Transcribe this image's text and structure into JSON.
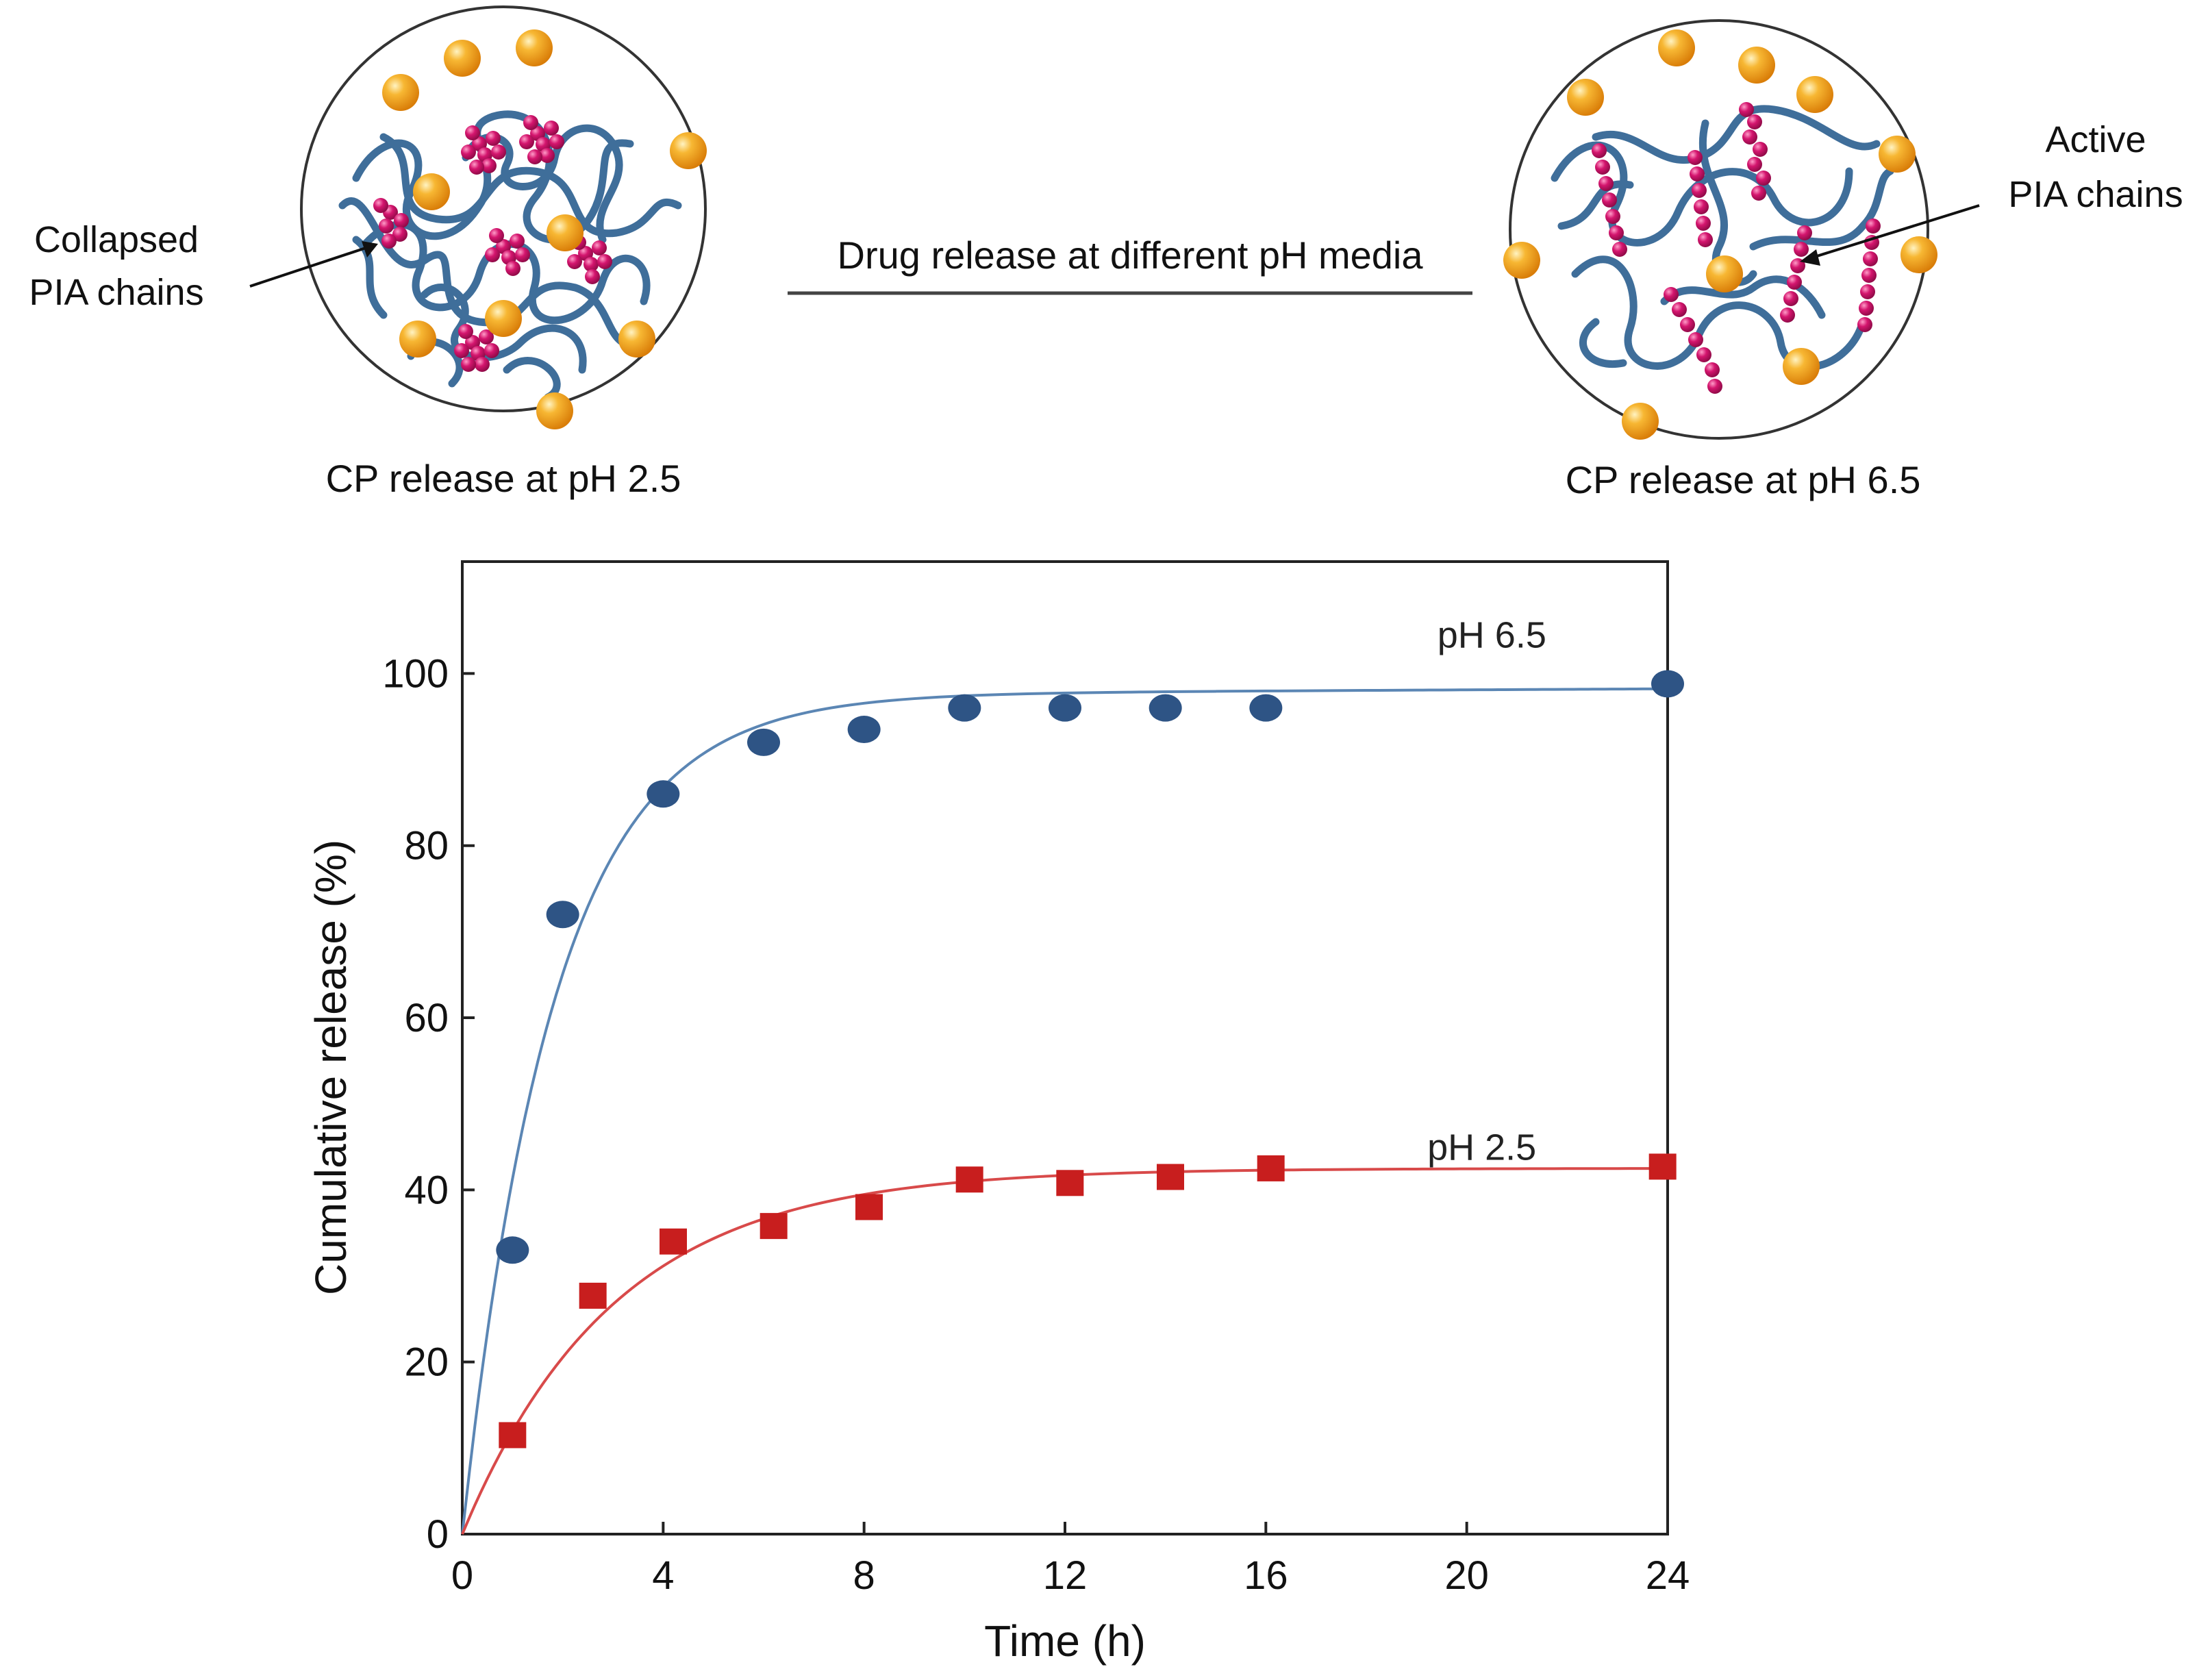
{
  "schematic": {
    "left_caption": "CP release at pH 2.5",
    "right_caption": "CP release at pH 6.5",
    "left_annotation": [
      "Collapsed",
      "PIA chains"
    ],
    "right_annotation": [
      "Active",
      "PIA chains"
    ],
    "center_label": "Drug release at different pH media",
    "colors": {
      "polymer": "#3f6e9a",
      "pia_bead": "#d4156e",
      "drug_particle": "#f3a51c"
    }
  },
  "chart_data": {
    "type": "scatter",
    "title": "",
    "xlabel": "Time  (h)",
    "ylabel": "Cumulative  release (%)",
    "xlim": [
      0,
      24
    ],
    "ylim": [
      0,
      113
    ],
    "x_tick_positions": [
      0,
      4,
      8,
      12,
      16,
      20,
      24
    ],
    "x_tick_labels": [
      "0",
      "4",
      "8",
      "12",
      "16",
      "20",
      "24"
    ],
    "y_ticks": [
      0,
      20,
      40,
      60,
      80,
      100
    ],
    "series": [
      {
        "name": "pH 6.5",
        "marker": "circle",
        "color": "#2e5485",
        "line_color": "#5b86b4",
        "x": [
          1,
          2,
          4,
          6,
          8,
          10,
          12,
          14,
          16,
          24
        ],
        "y": [
          33,
          72,
          86,
          92,
          93.5,
          96,
          96,
          96,
          96,
          98.8
        ]
      },
      {
        "name": "pH 2.5",
        "marker": "square",
        "color": "#c81e1e",
        "line_color": "#d84a4a",
        "x": [
          1,
          2.6,
          4.2,
          6.2,
          8.1,
          10.1,
          12.1,
          14.1,
          16.1,
          23.9
        ],
        "y": [
          11.5,
          27.7,
          34,
          35.8,
          38,
          41.2,
          40.8,
          41.5,
          42.5,
          42.7
        ]
      }
    ],
    "series_labels": [
      "pH 6.5",
      "pH 2.5"
    ]
  }
}
